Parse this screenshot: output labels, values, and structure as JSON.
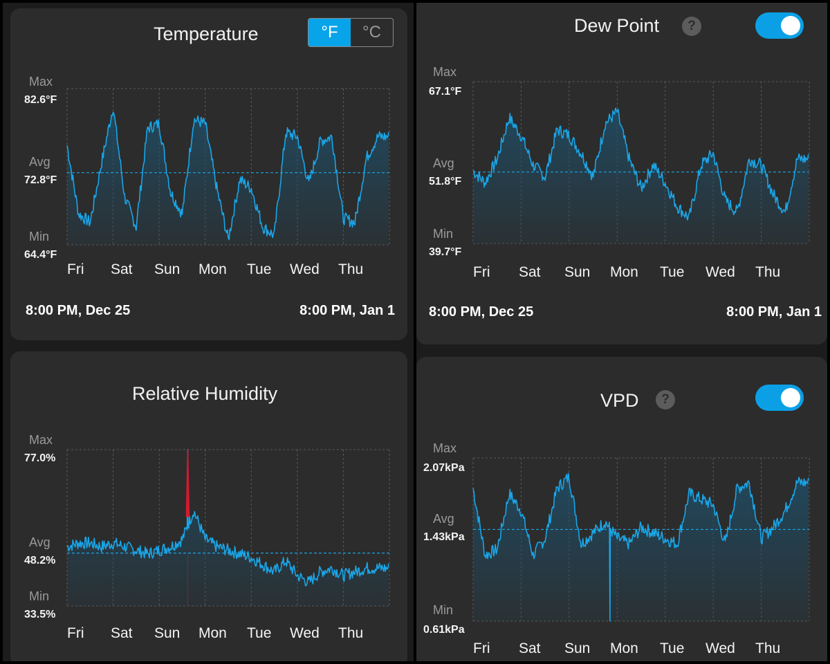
{
  "colors": {
    "line": "#1aa6e8",
    "alert_line": "#d8182f",
    "grid": "#5a5a5a",
    "avg_line": "#1aa6e8",
    "toggle_on": "#0ba0e6"
  },
  "common": {
    "max_label": "Max",
    "avg_label": "Avg",
    "min_label": "Min",
    "days": [
      "Fri",
      "Sat",
      "Sun",
      "Mon",
      "Tue",
      "Wed",
      "Thu"
    ],
    "range_start": "8:00 PM, Dec 25",
    "range_end": "8:00 PM, Jan 1"
  },
  "temperature": {
    "title": "Temperature",
    "units": {
      "f": "°F",
      "c": "°C",
      "selected": "f"
    },
    "max": "82.6°F",
    "avg": "72.8°F",
    "min": "64.4°F",
    "chart_data": {
      "type": "area",
      "title": "Temperature",
      "ylim": [
        64.4,
        82.6
      ],
      "avg": 72.8,
      "x_unit": "day",
      "x": [
        0,
        0.25,
        0.5,
        0.75,
        1,
        1.25,
        1.5,
        1.75,
        2,
        2.25,
        2.5,
        2.75,
        3,
        3.25,
        3.5,
        3.75,
        4,
        4.25,
        4.5,
        4.75,
        5,
        5.25,
        5.5,
        5.75,
        6,
        6.25,
        6.5,
        6.75
      ],
      "y": [
        76,
        68,
        67,
        74,
        80.5,
        70,
        66.5,
        78,
        78.5,
        70.5,
        68,
        79,
        78.5,
        71,
        65,
        72,
        71,
        66.5,
        65.5,
        77.5,
        77,
        71.5,
        76.5,
        77,
        67.5,
        67,
        74.5,
        77
      ]
    }
  },
  "dew_point": {
    "title": "Dew Point",
    "help": "?",
    "enabled": true,
    "max": "67.1°F",
    "avg": "51.8°F",
    "min": "39.7°F",
    "chart_data": {
      "type": "area",
      "title": "Dew Point",
      "ylim": [
        39.7,
        67.1
      ],
      "avg": 51.8,
      "x_unit": "day",
      "x": [
        0,
        0.25,
        0.5,
        0.75,
        1,
        1.25,
        1.5,
        1.75,
        2,
        2.25,
        2.5,
        2.75,
        3,
        3.25,
        3.5,
        3.75,
        4,
        4.25,
        4.5,
        4.75,
        5,
        5.25,
        5.5,
        5.75,
        6,
        6.25,
        6.5,
        6.75
      ],
      "y": [
        52,
        50,
        54,
        61,
        58,
        53,
        51,
        59,
        58,
        55,
        51,
        60,
        62,
        54,
        49,
        53,
        50,
        46,
        44,
        53,
        55,
        47,
        45,
        54,
        53,
        48,
        45,
        54
      ]
    }
  },
  "humidity": {
    "title": "Relative Humidity",
    "max": "77.0%",
    "avg": "48.2%",
    "min": "33.5%",
    "chart_data": {
      "type": "area",
      "title": "Relative Humidity",
      "ylim": [
        33.5,
        77.0
      ],
      "avg": 48.2,
      "x_unit": "day",
      "x": [
        0,
        0.25,
        0.5,
        0.75,
        1,
        1.25,
        1.5,
        1.75,
        2,
        2.25,
        2.5,
        2.75,
        3,
        3.25,
        3.5,
        3.75,
        4,
        4.25,
        4.5,
        4.75,
        5,
        5.25,
        5.5,
        5.75,
        6,
        6.25,
        6.5,
        6.75
      ],
      "y": [
        50,
        51,
        51,
        50,
        51,
        50,
        49,
        48,
        49,
        50,
        52,
        60,
        52,
        50,
        49,
        48,
        47,
        45,
        43,
        46,
        42,
        40,
        43,
        44,
        42,
        43,
        44,
        44
      ],
      "spike": {
        "x": 2.62,
        "y": 77.0
      }
    }
  },
  "vpd": {
    "title": "VPD",
    "help": "?",
    "enabled": true,
    "max": "2.07kPa",
    "avg": "1.43kPa",
    "min": "0.61kPa",
    "chart_data": {
      "type": "area",
      "title": "VPD",
      "ylim": [
        0.61,
        2.07
      ],
      "avg": 1.43,
      "x_unit": "day",
      "x": [
        0,
        0.25,
        0.5,
        0.75,
        1,
        1.25,
        1.5,
        1.75,
        2,
        2.25,
        2.5,
        2.75,
        3,
        3.25,
        3.5,
        3.75,
        4,
        4.25,
        4.5,
        4.75,
        5,
        5.25,
        5.5,
        5.75,
        6,
        6.25,
        6.5,
        6.75
      ],
      "y": [
        1.8,
        1.2,
        1.25,
        1.75,
        1.6,
        1.2,
        1.35,
        1.8,
        1.9,
        1.3,
        1.4,
        1.5,
        1.35,
        1.3,
        1.45,
        1.4,
        1.35,
        1.3,
        1.75,
        1.7,
        1.65,
        1.3,
        1.8,
        1.85,
        1.35,
        1.45,
        1.6,
        1.85
      ],
      "dip": {
        "x": 2.85,
        "y": 0.61
      }
    }
  }
}
